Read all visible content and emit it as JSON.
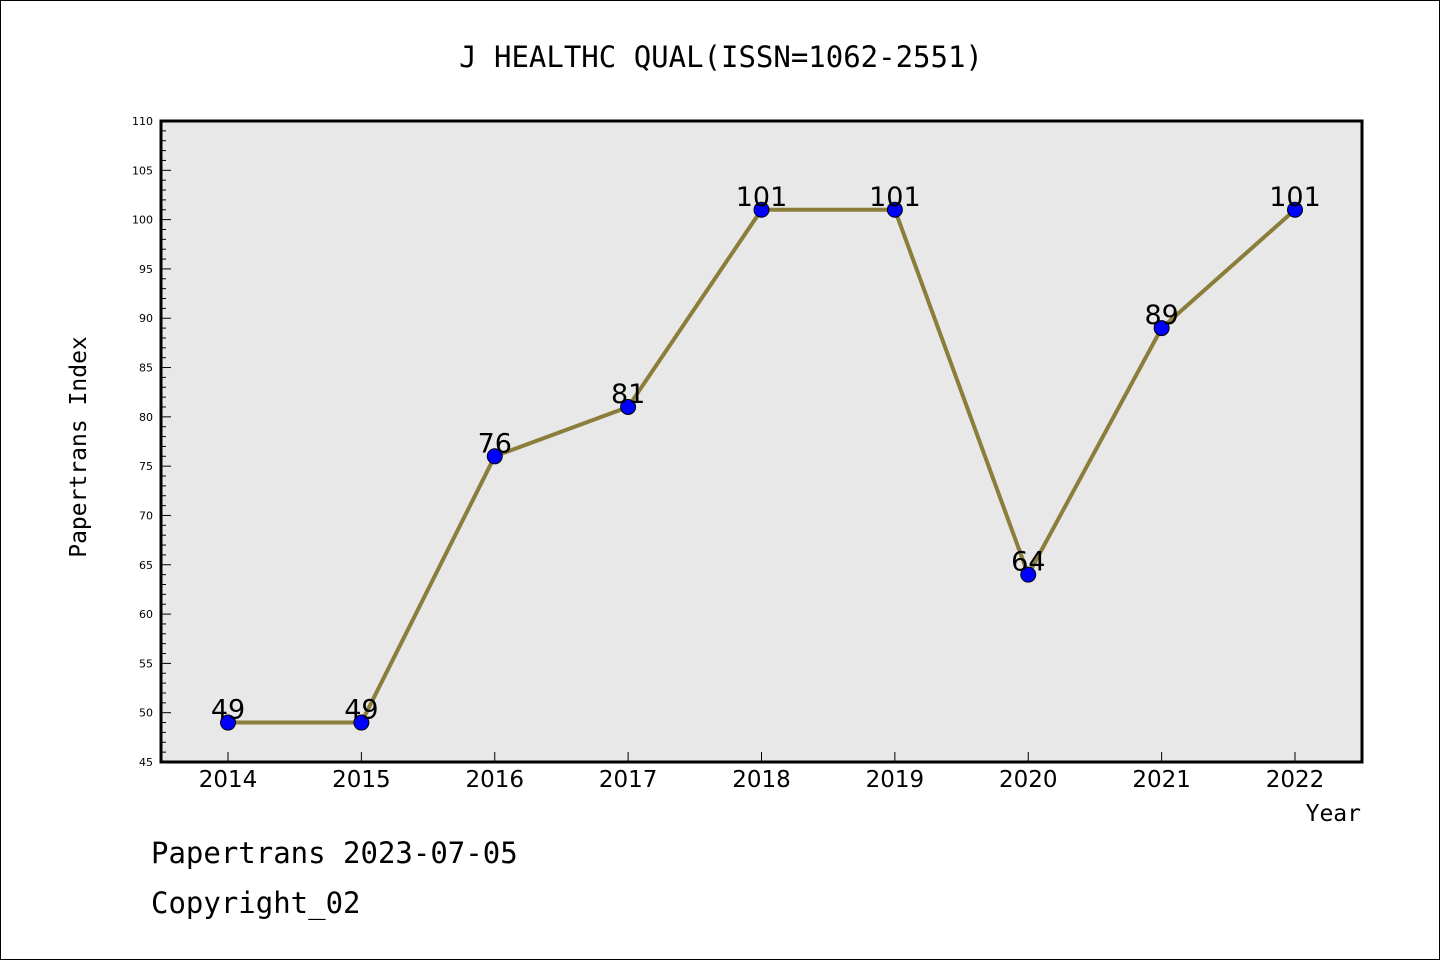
{
  "chart_data": {
    "type": "line",
    "title": "J HEALTHC QUAL(ISSN=1062-2551)",
    "xlabel": "Year",
    "ylabel": "Papertrans Index",
    "categories": [
      "2014",
      "2015",
      "2016",
      "2017",
      "2018",
      "2019",
      "2020",
      "2021",
      "2022"
    ],
    "series": [
      {
        "values": [
          49,
          49,
          76,
          81,
          101,
          101,
          64,
          89,
          101
        ]
      }
    ],
    "data_labels": [
      "49",
      "49",
      "76",
      "81",
      "101",
      "101",
      "64",
      "89",
      "101"
    ],
    "ylim": [
      45,
      110
    ],
    "y_ticks": [
      "45",
      "50",
      "55",
      "60",
      "65",
      "70",
      "75",
      "80",
      "85",
      "90",
      "95",
      "100",
      "105",
      "110"
    ],
    "grid": false,
    "legend": "none",
    "colors": {
      "plot_background": "#e8e8e8",
      "line": "#8b7d3a",
      "marker": "#0000ff",
      "axis": "#000000"
    }
  },
  "footer": {
    "date_line": "Papertrans 2023-07-05",
    "copyright": "Copyright_02"
  }
}
